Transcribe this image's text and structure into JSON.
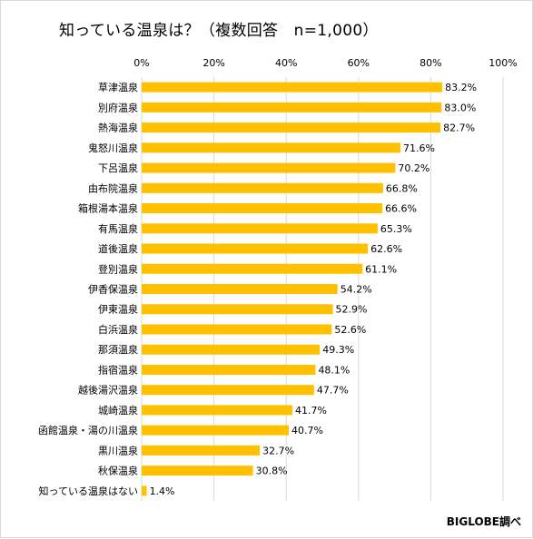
{
  "chart_data": {
    "type": "bar",
    "orientation": "horizontal",
    "title": "知っている温泉は？（複数回答　n=1,000）",
    "source": "BIGLOBE調べ",
    "value_axis": {
      "min": 0,
      "max": 100,
      "ticks": [
        "0%",
        "20%",
        "40%",
        "60%",
        "80%",
        "100%"
      ],
      "position": "top",
      "grid": true
    },
    "bar_color": "#FFC000",
    "grid_color": "#D9D9D9",
    "categories": [
      "草津温泉",
      "別府温泉",
      "熱海温泉",
      "鬼怒川温泉",
      "下呂温泉",
      "由布院温泉",
      "箱根湯本温泉",
      "有馬温泉",
      "道後温泉",
      "登別温泉",
      "伊香保温泉",
      "伊東温泉",
      "白浜温泉",
      "那須温泉",
      "指宿温泉",
      "越後湯沢温泉",
      "城崎温泉",
      "函館温泉・湯の川温泉",
      "黒川温泉",
      "秋保温泉",
      "知っている温泉はない"
    ],
    "values": [
      83.2,
      83.0,
      82.7,
      71.6,
      70.2,
      66.8,
      66.6,
      65.3,
      62.6,
      61.1,
      54.2,
      52.9,
      52.6,
      49.3,
      48.1,
      47.7,
      41.7,
      40.7,
      32.7,
      30.8,
      1.4
    ],
    "value_labels": [
      "83.2%",
      "83.0%",
      "82.7%",
      "71.6%",
      "70.2%",
      "66.8%",
      "66.6%",
      "65.3%",
      "62.6%",
      "61.1%",
      "54.2%",
      "52.9%",
      "52.6%",
      "49.3%",
      "48.1%",
      "47.7%",
      "41.7%",
      "40.7%",
      "32.7%",
      "30.8%",
      "1.4%"
    ]
  }
}
